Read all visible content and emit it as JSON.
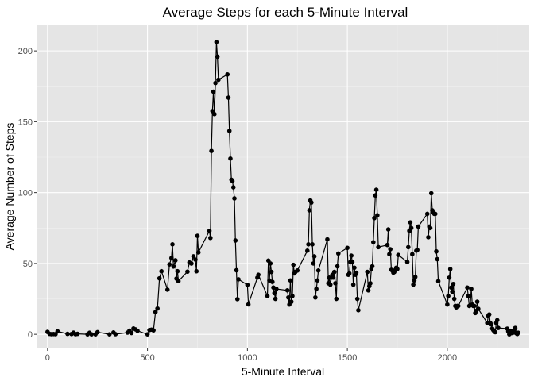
{
  "chart_data": {
    "type": "line",
    "title": "Average Steps for each 5-Minute Interval",
    "xlabel": "5-Minute Interval",
    "ylabel": "Average Number of Steps",
    "xlim": [
      -55,
      2410
    ],
    "ylim": [
      -10,
      218
    ],
    "x_ticks": [
      0,
      500,
      1000,
      1500,
      2000
    ],
    "y_ticks": [
      0,
      50,
      100,
      150,
      200
    ],
    "grid": true,
    "legend": "none",
    "colors": {
      "panel": "#e5e5e5",
      "grid": "#ffffff",
      "line": "#000000",
      "points": "#000000"
    },
    "series": [
      {
        "points": [
          [
            0,
            1.7
          ],
          [
            10,
            0.3
          ],
          [
            20,
            0.1
          ],
          [
            30,
            0.2
          ],
          [
            40,
            0.1
          ],
          [
            50,
            2.1
          ],
          [
            100,
            0.3
          ],
          [
            120,
            0.2
          ],
          [
            130,
            1.2
          ],
          [
            140,
            0.1
          ],
          [
            150,
            0.3
          ],
          [
            200,
            0.0
          ],
          [
            210,
            1.1
          ],
          [
            220,
            0.0
          ],
          [
            240,
            0.0
          ],
          [
            250,
            1.5
          ],
          [
            310,
            0.0
          ],
          [
            330,
            1.3
          ],
          [
            340,
            0.1
          ],
          [
            400,
            1.2
          ],
          [
            410,
            2.6
          ],
          [
            420,
            0.9
          ],
          [
            430,
            4.1
          ],
          [
            440,
            3.5
          ],
          [
            450,
            2.5
          ],
          [
            500,
            0.0
          ],
          [
            510,
            3.0
          ],
          [
            520,
            3.3
          ],
          [
            530,
            2.8
          ],
          [
            540,
            15.7
          ],
          [
            550,
            18.2
          ],
          [
            560,
            39.5
          ],
          [
            570,
            44.5
          ],
          [
            600,
            31.5
          ],
          [
            610,
            49.3
          ],
          [
            620,
            53.8
          ],
          [
            625,
            63.5
          ],
          [
            630,
            47.8
          ],
          [
            640,
            52.2
          ],
          [
            645,
            39.3
          ],
          [
            650,
            44.5
          ],
          [
            655,
            37.5
          ],
          [
            700,
            44.2
          ],
          [
            710,
            50.7
          ],
          [
            720,
            49.9
          ],
          [
            730,
            55.0
          ],
          [
            740,
            52.7
          ],
          [
            745,
            44.5
          ],
          [
            750,
            69.5
          ],
          [
            755,
            57.8
          ],
          [
            810,
            73.0
          ],
          [
            815,
            68.0
          ],
          [
            820,
            129.4
          ],
          [
            825,
            157.5
          ],
          [
            830,
            171.2
          ],
          [
            835,
            155.4
          ],
          [
            840,
            177.3
          ],
          [
            845,
            206.2
          ],
          [
            850,
            195.9
          ],
          [
            855,
            179.6
          ],
          [
            900,
            183.4
          ],
          [
            905,
            167.0
          ],
          [
            910,
            143.5
          ],
          [
            915,
            124.0
          ],
          [
            920,
            109.1
          ],
          [
            925,
            108.1
          ],
          [
            930,
            103.7
          ],
          [
            935,
            95.9
          ],
          [
            940,
            66.2
          ],
          [
            945,
            45.2
          ],
          [
            950,
            24.8
          ],
          [
            955,
            38.8
          ],
          [
            1000,
            34.9
          ],
          [
            1005,
            21.1
          ],
          [
            1050,
            40.0
          ],
          [
            1055,
            42.0
          ],
          [
            1100,
            27.0
          ],
          [
            1105,
            52.0
          ],
          [
            1110,
            38.0
          ],
          [
            1115,
            50.0
          ],
          [
            1120,
            44.0
          ],
          [
            1125,
            37.0
          ],
          [
            1130,
            33.0
          ],
          [
            1135,
            29.0
          ],
          [
            1140,
            25.0
          ],
          [
            1145,
            32.0
          ],
          [
            1200,
            31.0
          ],
          [
            1205,
            26.0
          ],
          [
            1210,
            21.0
          ],
          [
            1215,
            38.0
          ],
          [
            1220,
            23.0
          ],
          [
            1225,
            27.0
          ],
          [
            1230,
            49.0
          ],
          [
            1235,
            43.0
          ],
          [
            1240,
            44.0
          ],
          [
            1250,
            45.0
          ],
          [
            1300,
            59.0
          ],
          [
            1305,
            63.5
          ],
          [
            1310,
            87.5
          ],
          [
            1315,
            94.5
          ],
          [
            1320,
            93.0
          ],
          [
            1325,
            63.5
          ],
          [
            1330,
            50.0
          ],
          [
            1335,
            55.0
          ],
          [
            1340,
            26.0
          ],
          [
            1345,
            32.0
          ],
          [
            1350,
            38.0
          ],
          [
            1355,
            45.0
          ],
          [
            1400,
            67.0
          ],
          [
            1405,
            36.0
          ],
          [
            1410,
            40.0
          ],
          [
            1415,
            35.0
          ],
          [
            1420,
            40.0
          ],
          [
            1425,
            42.0
          ],
          [
            1430,
            40.0
          ],
          [
            1435,
            44.0
          ],
          [
            1440,
            36.0
          ],
          [
            1445,
            25.0
          ],
          [
            1450,
            48.0
          ],
          [
            1455,
            57.0
          ],
          [
            1500,
            61.0
          ],
          [
            1505,
            42.0
          ],
          [
            1510,
            43.0
          ],
          [
            1515,
            51.0
          ],
          [
            1520,
            55.5
          ],
          [
            1525,
            51.0
          ],
          [
            1530,
            35.0
          ],
          [
            1535,
            47.0
          ],
          [
            1540,
            42.0
          ],
          [
            1545,
            43.5
          ],
          [
            1550,
            25.0
          ],
          [
            1555,
            17.0
          ],
          [
            1600,
            44.0
          ],
          [
            1605,
            31.0
          ],
          [
            1610,
            34.0
          ],
          [
            1615,
            36.0
          ],
          [
            1620,
            46.0
          ],
          [
            1625,
            48.0
          ],
          [
            1630,
            65.0
          ],
          [
            1635,
            82.0
          ],
          [
            1640,
            98.0
          ],
          [
            1645,
            102.0
          ],
          [
            1650,
            84.0
          ],
          [
            1655,
            61.5
          ],
          [
            1700,
            63.0
          ],
          [
            1705,
            74.0
          ],
          [
            1710,
            56.5
          ],
          [
            1715,
            60.0
          ],
          [
            1720,
            45.5
          ],
          [
            1725,
            45.0
          ],
          [
            1730,
            43.5
          ],
          [
            1735,
            44.0
          ],
          [
            1740,
            45.5
          ],
          [
            1745,
            47.0
          ],
          [
            1750,
            46.0
          ],
          [
            1755,
            56.0
          ],
          [
            1800,
            51.0
          ],
          [
            1805,
            61.5
          ],
          [
            1810,
            73.0
          ],
          [
            1815,
            79.0
          ],
          [
            1820,
            75.0
          ],
          [
            1825,
            56.5
          ],
          [
            1830,
            35.0
          ],
          [
            1835,
            38.0
          ],
          [
            1840,
            40.5
          ],
          [
            1845,
            59.0
          ],
          [
            1850,
            59.5
          ],
          [
            1855,
            76.0
          ],
          [
            1900,
            85.0
          ],
          [
            1905,
            68.5
          ],
          [
            1910,
            76.0
          ],
          [
            1915,
            75.0
          ],
          [
            1920,
            99.5
          ],
          [
            1925,
            87.5
          ],
          [
            1930,
            86.0
          ],
          [
            1935,
            85.0
          ],
          [
            1940,
            85.0
          ],
          [
            1945,
            58.5
          ],
          [
            1950,
            53.0
          ],
          [
            1955,
            37.5
          ],
          [
            2000,
            21.0
          ],
          [
            2005,
            27.0
          ],
          [
            2010,
            40.0
          ],
          [
            2015,
            46.0
          ],
          [
            2020,
            33.0
          ],
          [
            2025,
            30.0
          ],
          [
            2030,
            35.5
          ],
          [
            2035,
            25.0
          ],
          [
            2040,
            20.0
          ],
          [
            2045,
            19.0
          ],
          [
            2050,
            20.0
          ],
          [
            2055,
            20.0
          ],
          [
            2100,
            33.0
          ],
          [
            2105,
            27.0
          ],
          [
            2110,
            20.0
          ],
          [
            2115,
            20.5
          ],
          [
            2120,
            32.0
          ],
          [
            2125,
            21.0
          ],
          [
            2130,
            20.0
          ],
          [
            2135,
            20.0
          ],
          [
            2140,
            15.0
          ],
          [
            2145,
            16.5
          ],
          [
            2150,
            23.0
          ],
          [
            2155,
            18.0
          ],
          [
            2200,
            8.0
          ],
          [
            2205,
            13.0
          ],
          [
            2210,
            14.0
          ],
          [
            2215,
            8.0
          ],
          [
            2220,
            7.0
          ],
          [
            2225,
            4.0
          ],
          [
            2230,
            3.0
          ],
          [
            2235,
            2.0
          ],
          [
            2240,
            1.5
          ],
          [
            2245,
            8.0
          ],
          [
            2250,
            10.0
          ],
          [
            2255,
            4.5
          ],
          [
            2300,
            4.0
          ],
          [
            2305,
            2.0
          ],
          [
            2310,
            0.0
          ],
          [
            2315,
            2.5
          ],
          [
            2320,
            0.8
          ],
          [
            2325,
            1.7
          ],
          [
            2330,
            1.2
          ],
          [
            2335,
            3.0
          ],
          [
            2340,
            4.5
          ],
          [
            2345,
            0.8
          ],
          [
            2350,
            0.2
          ],
          [
            2355,
            1.1
          ]
        ]
      }
    ]
  }
}
